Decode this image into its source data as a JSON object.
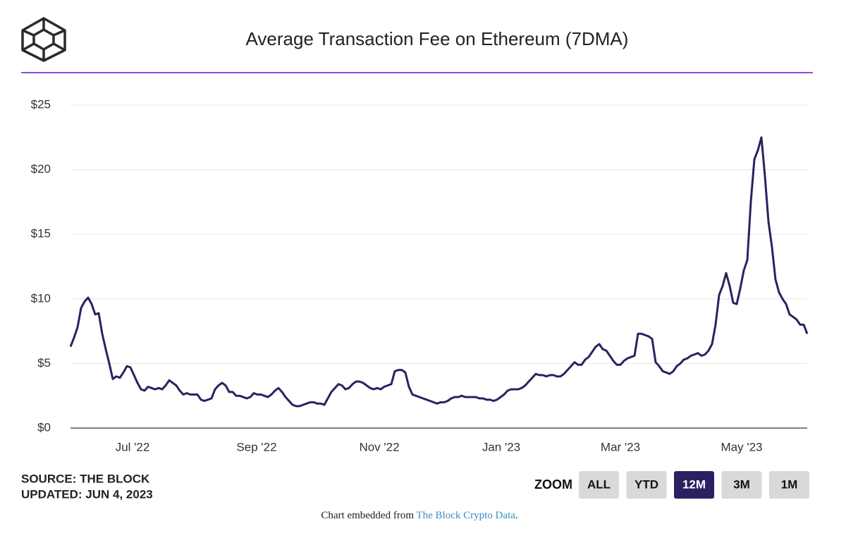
{
  "chart_data": {
    "type": "line",
    "title": "Average Transaction Fee on Ethereum (7DMA)",
    "color": "#2b2161",
    "values": [
      6.3,
      7.0,
      7.8,
      9.3,
      9.8,
      10.1,
      9.6,
      8.8,
      8.9,
      7.3,
      6.1,
      5.0,
      3.8,
      4.0,
      3.9,
      4.3,
      4.8,
      4.7,
      4.1,
      3.5,
      3.0,
      2.9,
      3.2,
      3.1,
      3.0,
      3.1,
      3.0,
      3.3,
      3.7,
      3.5,
      3.3,
      2.9,
      2.6,
      2.7,
      2.6,
      2.6,
      2.6,
      2.2,
      2.1,
      2.2,
      2.3,
      3.0,
      3.3,
      3.5,
      3.3,
      2.8,
      2.8,
      2.5,
      2.5,
      2.4,
      2.3,
      2.4,
      2.7,
      2.6,
      2.6,
      2.5,
      2.4,
      2.6,
      2.9,
      3.1,
      2.8,
      2.4,
      2.1,
      1.8,
      1.7,
      1.7,
      1.8,
      1.9,
      2.0,
      2.0,
      1.9,
      1.9,
      1.8,
      2.3,
      2.8,
      3.1,
      3.4,
      3.3,
      3.0,
      3.1,
      3.4,
      3.6,
      3.6,
      3.5,
      3.3,
      3.1,
      3.0,
      3.1,
      3.0,
      3.2,
      3.3,
      3.4,
      4.4,
      4.5,
      4.5,
      4.3,
      3.2,
      2.6,
      2.5,
      2.4,
      2.3,
      2.2,
      2.1,
      2.0,
      1.9,
      2.0,
      2.0,
      2.1,
      2.3,
      2.4,
      2.4,
      2.5,
      2.4,
      2.4,
      2.4,
      2.4,
      2.3,
      2.3,
      2.2,
      2.2,
      2.1,
      2.2,
      2.4,
      2.6,
      2.9,
      3.0,
      3.0,
      3.0,
      3.1,
      3.3,
      3.6,
      3.9,
      4.2,
      4.1,
      4.1,
      4.0,
      4.1,
      4.1,
      4.0,
      4.0,
      4.2,
      4.5,
      4.8,
      5.1,
      4.9,
      4.9,
      5.3,
      5.5,
      5.9,
      6.3,
      6.5,
      6.1,
      6.0,
      5.6,
      5.2,
      4.9,
      4.9,
      5.2,
      5.4,
      5.5,
      5.6,
      7.3,
      7.3,
      7.2,
      7.1,
      6.9,
      5.1,
      4.8,
      4.4,
      4.3,
      4.2,
      4.4,
      4.8,
      5.0,
      5.3,
      5.4,
      5.6,
      5.7,
      5.8,
      5.6,
      5.7,
      6.0,
      6.5,
      8.0,
      10.3,
      11.0,
      12.0,
      11.0,
      9.7,
      9.6,
      10.8,
      12.2,
      13.0,
      17.5,
      20.8,
      21.5,
      22.5,
      19.5,
      16.0,
      14.0,
      11.5,
      10.5,
      10.0,
      9.6,
      8.8,
      8.6,
      8.4,
      8.0,
      8.0,
      7.3
    ],
    "xlim": [
      0,
      209
    ],
    "xticks": [
      {
        "value": 17.6,
        "label": "Jul '22"
      },
      {
        "value": 52.8,
        "label": "Sep '22"
      },
      {
        "value": 87.6,
        "label": "Nov '22"
      },
      {
        "value": 122.2,
        "label": "Jan '23"
      },
      {
        "value": 156,
        "label": "Mar '23"
      },
      {
        "value": 190.4,
        "label": "May '23"
      }
    ],
    "ylim": [
      0,
      25
    ],
    "yticks": [
      {
        "value": 0,
        "label": "$0"
      },
      {
        "value": 5,
        "label": "$5"
      },
      {
        "value": 10,
        "label": "$10"
      },
      {
        "value": 15,
        "label": "$15"
      },
      {
        "value": 20,
        "label": "$20"
      },
      {
        "value": 25,
        "label": "$25"
      }
    ],
    "grid": true
  },
  "source": "SOURCE: THE BLOCK",
  "updated": "UPDATED: JUN 4, 2023",
  "zoom": {
    "label": "ZOOM",
    "options": [
      "ALL",
      "YTD",
      "12M",
      "3M",
      "1M"
    ],
    "active": 2
  },
  "footer": {
    "text": "Chart embedded from",
    "link": "The Block Crypto Data",
    "end": "."
  }
}
